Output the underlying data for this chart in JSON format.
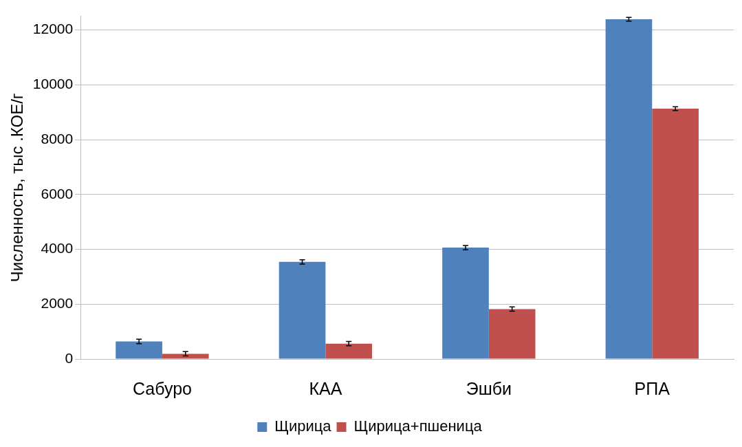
{
  "chart_data": {
    "type": "bar",
    "ylabel": "Численность, тыс .КОЕ/г",
    "categories": [
      "Сабуро",
      "КАА",
      "Эшби",
      "РПА"
    ],
    "series": [
      {
        "name": "Щирица",
        "color": "#4f81bd",
        "values": [
          640,
          3540,
          4060,
          12390
        ],
        "errors": [
          80,
          80,
          80,
          70
        ]
      },
      {
        "name": "Щирица+пшеница",
        "color": "#c0504d",
        "values": [
          190,
          560,
          1820,
          9130
        ],
        "errors": [
          80,
          80,
          80,
          70
        ]
      }
    ],
    "ylim": [
      0,
      12500
    ],
    "yticks": [
      0,
      2000,
      4000,
      6000,
      8000,
      10000,
      12000
    ],
    "grid": "y",
    "legend": "bottom"
  }
}
